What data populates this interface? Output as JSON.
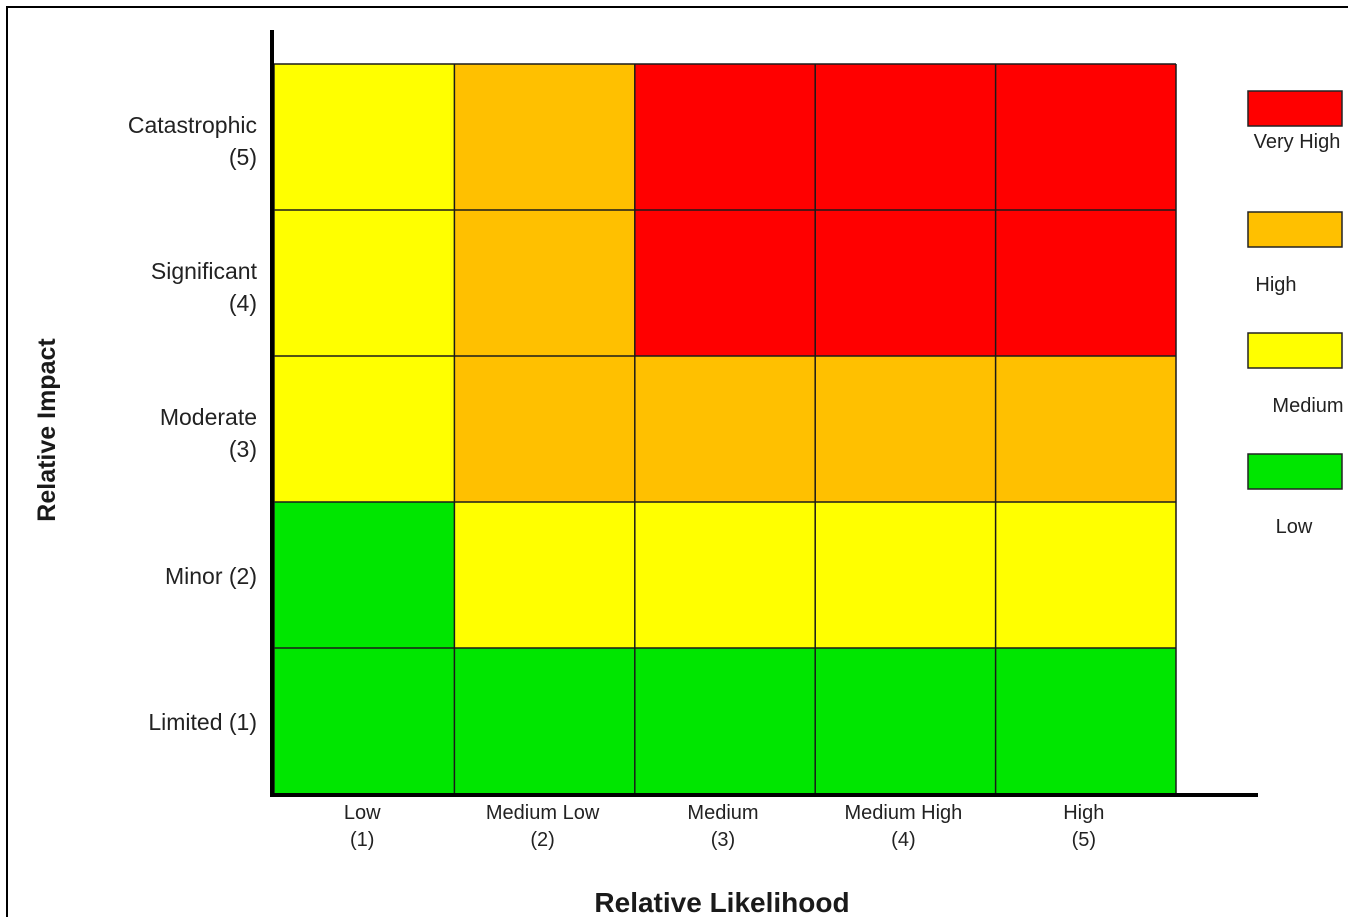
{
  "chart_data": {
    "type": "heatmap",
    "xlabel": "Relative Likelihood",
    "ylabel": "Relative Impact",
    "x_categories": [
      {
        "line1": "Low",
        "line2": "(1)"
      },
      {
        "line1": "Medium Low",
        "line2": "(2)"
      },
      {
        "line1": "Medium",
        "line2": "(3)"
      },
      {
        "line1": "Medium High",
        "line2": "(4)"
      },
      {
        "line1": "High",
        "line2": "(5)"
      }
    ],
    "y_categories": [
      {
        "line1": "Catastrophic",
        "line2": "(5)"
      },
      {
        "line1": "Significant",
        "line2": "(4)"
      },
      {
        "line1": "Moderate",
        "line2": "(3)"
      },
      {
        "line1": "Minor (2)",
        "line2": ""
      },
      {
        "line1": "Limited (1)",
        "line2": ""
      }
    ],
    "cells": [
      [
        "Medium",
        "High",
        "Very High",
        "Very High",
        "Very High"
      ],
      [
        "Medium",
        "High",
        "Very High",
        "Very High",
        "Very High"
      ],
      [
        "Medium",
        "High",
        "High",
        "High",
        "High"
      ],
      [
        "Low",
        "Medium",
        "Medium",
        "Medium",
        "Medium"
      ],
      [
        "Low",
        "Low",
        "Low",
        "Low",
        "Low"
      ]
    ],
    "legend": [
      {
        "label": "Very High",
        "color": "#ff0000"
      },
      {
        "label": "High",
        "color": "#ffc000"
      },
      {
        "label": "Medium",
        "color": "#ffff00"
      },
      {
        "label": "Low",
        "color": "#00e600"
      }
    ],
    "legend_placement": "right",
    "grid": true
  }
}
